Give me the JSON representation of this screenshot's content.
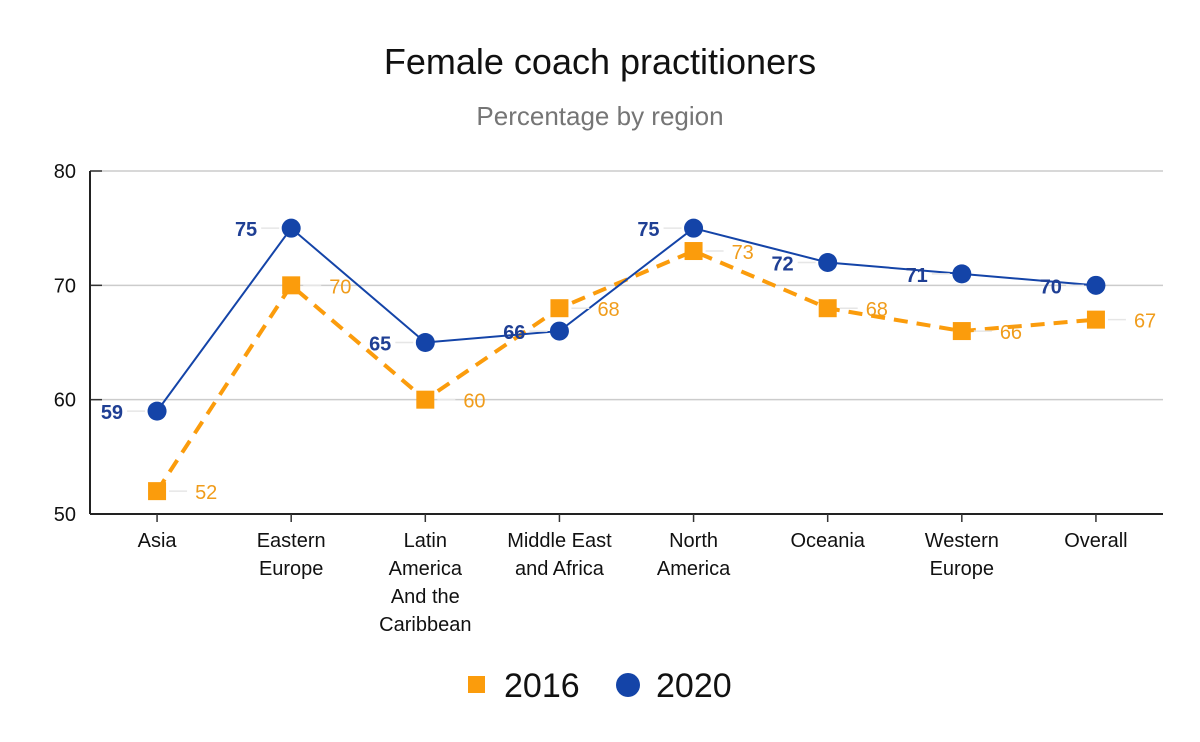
{
  "chart_data": {
    "type": "line",
    "title": "Female coach practitioners",
    "subtitle": "Percentage by region",
    "xlabel": "",
    "ylabel": "",
    "ylim": [
      50,
      80
    ],
    "yticks": [
      50,
      60,
      70,
      80
    ],
    "grid": true,
    "legend_position": "bottom",
    "categories": [
      [
        "Asia"
      ],
      [
        "Eastern",
        "Europe"
      ],
      [
        "Latin",
        "America",
        "And the",
        "Caribbean"
      ],
      [
        "Middle East",
        "and Africa"
      ],
      [
        "North",
        "America"
      ],
      [
        "Oceania"
      ],
      [
        "Western",
        "Europe"
      ],
      [
        "Overall"
      ]
    ],
    "series": [
      {
        "name": "2016",
        "color": "#fb9c0c",
        "label_color": "#f0a030",
        "marker": "square",
        "line": "dashed",
        "values": [
          52,
          70,
          60,
          68,
          73,
          68,
          66,
          67
        ]
      },
      {
        "name": "2020",
        "color": "#1444a8",
        "label_color": "#1f3f94",
        "marker": "circle",
        "line": "solid",
        "values": [
          59,
          75,
          65,
          66,
          75,
          72,
          71,
          70
        ]
      }
    ]
  }
}
